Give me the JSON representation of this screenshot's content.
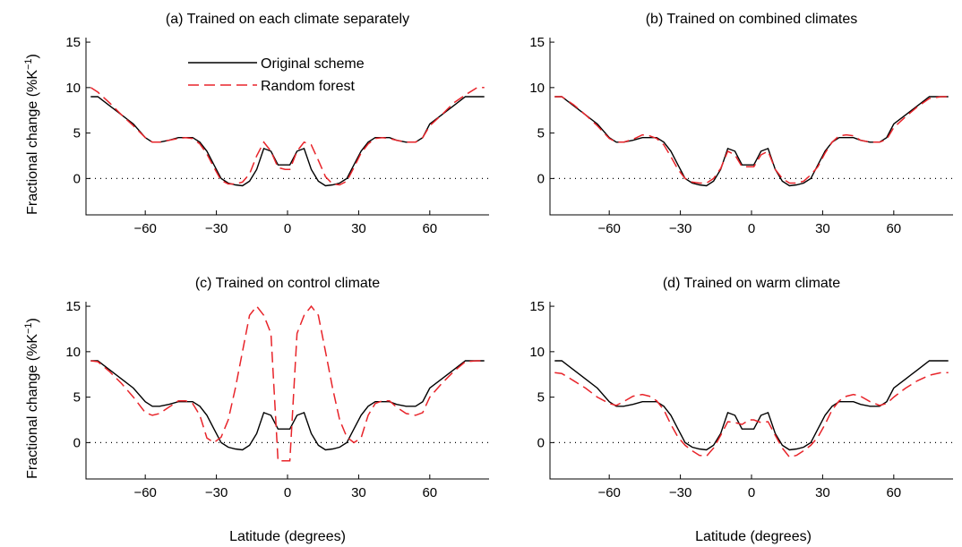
{
  "figure": {
    "ylabel_prefix": "Fractional change (%K",
    "ylabel_sup": "−1",
    "ylabel_suffix": ")",
    "xlabel": "Latitude (degrees)"
  },
  "legend": {
    "original": "Original scheme",
    "rf": "Random forest"
  },
  "colors": {
    "original": "#000000",
    "random_forest": "#e8242a"
  },
  "chart_data": [
    {
      "type": "line",
      "title": "(a) Trained on each climate separately",
      "xlabel": "",
      "ylabel": "Fractional change (%K−1)",
      "xlim": [
        -85,
        85
      ],
      "ylim": [
        -4,
        15.5
      ],
      "xticks": [
        -60,
        -30,
        0,
        30,
        60
      ],
      "xtick_labels": [
        "−60",
        "−30",
        "0",
        "30",
        "60"
      ],
      "yticks": [
        0,
        5,
        10,
        15
      ],
      "ytick_labels": [
        "0",
        "5",
        "10",
        "15"
      ],
      "reference_line": 0,
      "legend": "top-left",
      "series": [
        {
          "name": "Original scheme",
          "style": "solid",
          "x": [
            -83,
            -80,
            -75,
            -70,
            -65,
            -60,
            -57,
            -54,
            -50,
            -46,
            -43,
            -40,
            -37,
            -34,
            -31,
            -28,
            -25,
            -22,
            -19,
            -16,
            -13,
            -10,
            -7,
            -4,
            -1,
            1,
            4,
            7,
            10,
            13,
            16,
            19,
            22,
            25,
            28,
            31,
            34,
            37,
            40,
            43,
            46,
            50,
            54,
            57,
            60,
            65,
            70,
            75,
            80,
            83
          ],
          "y": [
            9,
            9,
            8,
            7,
            6,
            4.5,
            4,
            4,
            4.2,
            4.5,
            4.5,
            4.5,
            4,
            3,
            1.5,
            0,
            -0.5,
            -0.7,
            -0.8,
            -0.3,
            1,
            3.3,
            3,
            1.5,
            1.5,
            1.5,
            3,
            3.3,
            1,
            -0.3,
            -0.8,
            -0.7,
            -0.5,
            0,
            1.5,
            3,
            4,
            4.5,
            4.5,
            4.5,
            4.2,
            4,
            4,
            4.5,
            6,
            7,
            8,
            9,
            9,
            9
          ]
        },
        {
          "name": "Random forest",
          "style": "dashed",
          "x": [
            -83,
            -80,
            -75,
            -70,
            -65,
            -60,
            -57,
            -54,
            -50,
            -46,
            -43,
            -40,
            -37,
            -34,
            -31,
            -28,
            -25,
            -22,
            -19,
            -16,
            -13,
            -10,
            -7,
            -4,
            -1,
            1,
            4,
            7,
            10,
            13,
            16,
            19,
            22,
            25,
            28,
            31,
            34,
            37,
            40,
            43,
            46,
            50,
            54,
            57,
            60,
            65,
            70,
            75,
            80,
            83
          ],
          "y": [
            10,
            9.5,
            8.3,
            7,
            5.8,
            4.5,
            4,
            4,
            4.2,
            4.4,
            4.5,
            4.4,
            3.8,
            2.7,
            1.2,
            -0.2,
            -0.6,
            -0.6,
            -0.4,
            0.5,
            2.5,
            4,
            3,
            1.2,
            1,
            1,
            3,
            4,
            3.7,
            2,
            0.2,
            -0.6,
            -0.7,
            -0.3,
            1.2,
            2.8,
            3.8,
            4.4,
            4.5,
            4.4,
            4.2,
            4,
            4,
            4.5,
            5.8,
            7,
            8.3,
            9.2,
            10,
            10
          ]
        }
      ]
    },
    {
      "type": "line",
      "title": "(b) Trained on combined climates",
      "xlabel": "",
      "ylabel": "",
      "xlim": [
        -85,
        85
      ],
      "ylim": [
        -4,
        15.5
      ],
      "xticks": [
        -60,
        -30,
        0,
        30,
        60
      ],
      "xtick_labels": [
        "−60",
        "−30",
        "0",
        "30",
        "60"
      ],
      "yticks": [
        0,
        5,
        10,
        15
      ],
      "ytick_labels": [
        "0",
        "5",
        "10",
        "15"
      ],
      "reference_line": 0,
      "series": [
        {
          "name": "Original scheme",
          "style": "solid",
          "x": [
            -83,
            -80,
            -75,
            -70,
            -65,
            -60,
            -57,
            -54,
            -50,
            -46,
            -43,
            -40,
            -37,
            -34,
            -31,
            -28,
            -25,
            -22,
            -19,
            -16,
            -13,
            -10,
            -7,
            -4,
            -1,
            1,
            4,
            7,
            10,
            13,
            16,
            19,
            22,
            25,
            28,
            31,
            34,
            37,
            40,
            43,
            46,
            50,
            54,
            57,
            60,
            65,
            70,
            75,
            80,
            83
          ],
          "y": [
            9,
            9,
            8,
            7,
            6,
            4.5,
            4,
            4,
            4.2,
            4.5,
            4.5,
            4.5,
            4,
            3,
            1.5,
            0,
            -0.5,
            -0.7,
            -0.8,
            -0.3,
            1,
            3.3,
            3,
            1.5,
            1.5,
            1.5,
            3,
            3.3,
            1,
            -0.3,
            -0.8,
            -0.7,
            -0.5,
            0,
            1.5,
            3,
            4,
            4.5,
            4.5,
            4.5,
            4.2,
            4,
            4,
            4.5,
            6,
            7,
            8,
            9,
            9,
            9
          ]
        },
        {
          "name": "Random forest",
          "style": "dashed",
          "x": [
            -83,
            -80,
            -75,
            -70,
            -65,
            -60,
            -57,
            -54,
            -50,
            -46,
            -43,
            -40,
            -37,
            -34,
            -31,
            -28,
            -25,
            -22,
            -19,
            -16,
            -13,
            -10,
            -7,
            -4,
            -1,
            1,
            4,
            7,
            10,
            13,
            16,
            19,
            22,
            25,
            28,
            31,
            34,
            37,
            40,
            43,
            46,
            50,
            54,
            57,
            60,
            65,
            70,
            75,
            80,
            83
          ],
          "y": [
            9,
            9,
            8.1,
            7,
            5.8,
            4.4,
            4,
            4,
            4.3,
            4.8,
            4.7,
            4.4,
            3.7,
            2.4,
            1,
            0,
            -0.4,
            -0.5,
            -0.5,
            0,
            1.1,
            3,
            2.6,
            1.3,
            1.3,
            1.3,
            2.6,
            3,
            1,
            0,
            -0.5,
            -0.5,
            -0.3,
            0.4,
            1.3,
            2.8,
            4,
            4.7,
            4.8,
            4.7,
            4.2,
            4,
            4,
            4.3,
            5.6,
            6.8,
            7.9,
            8.8,
            9,
            9
          ]
        }
      ]
    },
    {
      "type": "line",
      "title": "(c) Trained on control climate",
      "xlabel": "Latitude (degrees)",
      "ylabel": "Fractional change (%K−1)",
      "xlim": [
        -85,
        85
      ],
      "ylim": [
        -4,
        15.5
      ],
      "xticks": [
        -60,
        -30,
        0,
        30,
        60
      ],
      "xtick_labels": [
        "−60",
        "−30",
        "0",
        "30",
        "60"
      ],
      "yticks": [
        0,
        5,
        10,
        15
      ],
      "ytick_labels": [
        "0",
        "5",
        "10",
        "15"
      ],
      "reference_line": 0,
      "series": [
        {
          "name": "Original scheme",
          "style": "solid",
          "x": [
            -83,
            -80,
            -75,
            -70,
            -65,
            -60,
            -57,
            -54,
            -50,
            -46,
            -43,
            -40,
            -37,
            -34,
            -31,
            -28,
            -25,
            -22,
            -19,
            -16,
            -13,
            -10,
            -7,
            -4,
            -1,
            1,
            4,
            7,
            10,
            13,
            16,
            19,
            22,
            25,
            28,
            31,
            34,
            37,
            40,
            43,
            46,
            50,
            54,
            57,
            60,
            65,
            70,
            75,
            80,
            83
          ],
          "y": [
            9,
            9,
            8,
            7,
            6,
            4.5,
            4,
            4,
            4.2,
            4.5,
            4.5,
            4.5,
            4,
            3,
            1.5,
            0,
            -0.5,
            -0.7,
            -0.8,
            -0.3,
            1,
            3.3,
            3,
            1.5,
            1.5,
            1.5,
            3,
            3.3,
            1,
            -0.3,
            -0.8,
            -0.7,
            -0.5,
            0,
            1.5,
            3,
            4,
            4.5,
            4.5,
            4.5,
            4.2,
            4,
            4,
            4.5,
            6,
            7,
            8,
            9,
            9,
            9
          ]
        },
        {
          "name": "Random forest",
          "style": "dashed",
          "x": [
            -83,
            -80,
            -75,
            -70,
            -65,
            -60,
            -57,
            -54,
            -50,
            -46,
            -43,
            -40,
            -37,
            -34,
            -31,
            -28,
            -25,
            -22,
            -19,
            -16,
            -13,
            -10,
            -7,
            -4,
            -1,
            1,
            4,
            7,
            10,
            13,
            16,
            19,
            22,
            25,
            28,
            31,
            34,
            37,
            40,
            43,
            46,
            50,
            54,
            57,
            60,
            65,
            70,
            75,
            80,
            83
          ],
          "y": [
            9,
            8.9,
            7.8,
            6.5,
            5,
            3.3,
            3,
            3.2,
            3.9,
            4.6,
            4.6,
            4.3,
            3,
            0.5,
            0,
            0.6,
            2.5,
            6,
            10,
            14,
            15,
            14,
            12,
            -2,
            -2,
            -2,
            12,
            14,
            15,
            14,
            10,
            6,
            2.5,
            0.6,
            0,
            0.5,
            3,
            4.3,
            4.6,
            4.6,
            3.9,
            3.2,
            3,
            3.3,
            5,
            6.5,
            7.8,
            8.9,
            9,
            9
          ]
        }
      ]
    },
    {
      "type": "line",
      "title": "(d) Trained on warm climate",
      "xlabel": "Latitude (degrees)",
      "ylabel": "",
      "xlim": [
        -85,
        85
      ],
      "ylim": [
        -4,
        15.5
      ],
      "xticks": [
        -60,
        -30,
        0,
        30,
        60
      ],
      "xtick_labels": [
        "−60",
        "−30",
        "0",
        "30",
        "60"
      ],
      "yticks": [
        0,
        5,
        10,
        15
      ],
      "ytick_labels": [
        "0",
        "5",
        "10",
        "15"
      ],
      "reference_line": 0,
      "series": [
        {
          "name": "Original scheme",
          "style": "solid",
          "x": [
            -83,
            -80,
            -75,
            -70,
            -65,
            -60,
            -57,
            -54,
            -50,
            -46,
            -43,
            -40,
            -37,
            -34,
            -31,
            -28,
            -25,
            -22,
            -19,
            -16,
            -13,
            -10,
            -7,
            -4,
            -1,
            1,
            4,
            7,
            10,
            13,
            16,
            19,
            22,
            25,
            28,
            31,
            34,
            37,
            40,
            43,
            46,
            50,
            54,
            57,
            60,
            65,
            70,
            75,
            80,
            83
          ],
          "y": [
            9,
            9,
            8,
            7,
            6,
            4.5,
            4,
            4,
            4.2,
            4.5,
            4.5,
            4.5,
            4,
            3,
            1.5,
            0,
            -0.5,
            -0.7,
            -0.8,
            -0.3,
            1,
            3.3,
            3,
            1.5,
            1.5,
            1.5,
            3,
            3.3,
            1,
            -0.3,
            -0.8,
            -0.7,
            -0.5,
            0,
            1.5,
            3,
            4,
            4.5,
            4.5,
            4.5,
            4.2,
            4,
            4,
            4.5,
            6,
            7,
            8,
            9,
            9,
            9
          ]
        },
        {
          "name": "Random forest",
          "style": "dashed",
          "x": [
            -83,
            -80,
            -75,
            -70,
            -65,
            -60,
            -57,
            -54,
            -50,
            -46,
            -43,
            -40,
            -37,
            -34,
            -31,
            -28,
            -25,
            -22,
            -19,
            -16,
            -13,
            -10,
            -7,
            -4,
            -1,
            1,
            4,
            7,
            10,
            13,
            16,
            19,
            22,
            25,
            28,
            31,
            34,
            37,
            40,
            43,
            46,
            50,
            54,
            57,
            60,
            65,
            70,
            75,
            80,
            83
          ],
          "y": [
            7.7,
            7.6,
            6.8,
            6,
            5,
            4.3,
            4.1,
            4.5,
            5.1,
            5.3,
            5.1,
            4.6,
            3.6,
            2,
            0.6,
            -0.3,
            -0.9,
            -1.4,
            -1.5,
            -0.6,
            0.8,
            2.3,
            2.2,
            2,
            2.5,
            2.5,
            2.2,
            2.3,
            0.8,
            -0.6,
            -1.6,
            -1.4,
            -0.9,
            -0.3,
            0.6,
            2,
            3.6,
            4.6,
            5.1,
            5.3,
            5.1,
            4.5,
            4.1,
            4.3,
            5,
            6,
            6.8,
            7.4,
            7.7,
            7.7
          ]
        }
      ]
    }
  ]
}
